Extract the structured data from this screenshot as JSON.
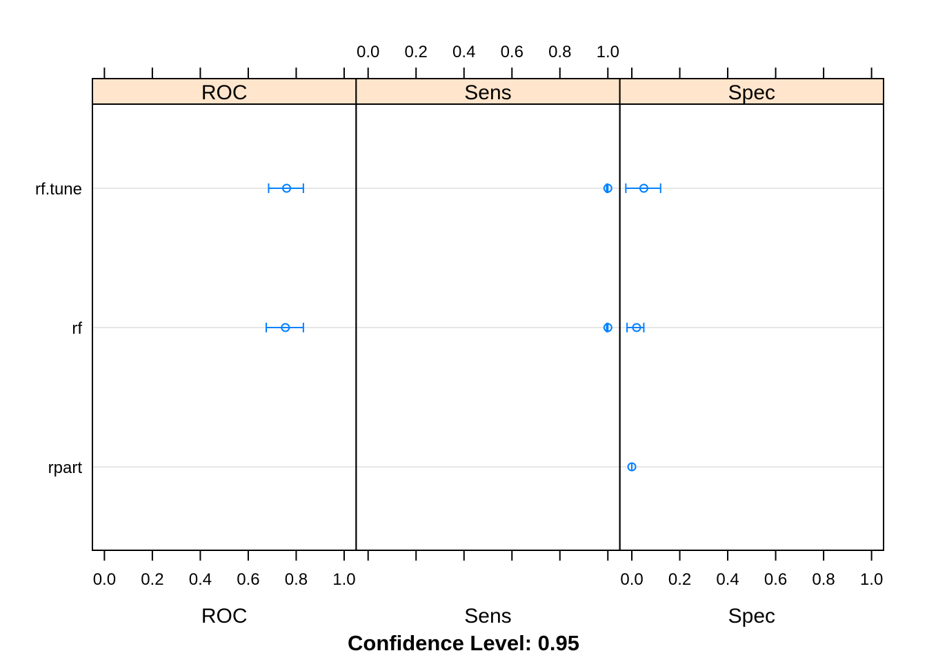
{
  "chart_data": {
    "type": "dotplot",
    "caption": "Confidence Level: 0.95",
    "models": [
      "rf.tune",
      "rf",
      "rpart"
    ],
    "xlim": [
      -0.05,
      1.05
    ],
    "ticks": [
      "0.0",
      "0.2",
      "0.4",
      "0.6",
      "0.8",
      "1.0"
    ],
    "colors": {
      "series": "#0080ff",
      "strip": "#ffe5cc",
      "gridline": "#e6e6e6",
      "frame": "#000000"
    },
    "panels": [
      {
        "name": "ROC",
        "xlabel": "ROC",
        "intervals": [
          {
            "model": "rf.tune",
            "estimate": 0.76,
            "lower": 0.685,
            "upper": 0.83
          },
          {
            "model": "rf",
            "estimate": 0.755,
            "lower": 0.675,
            "upper": 0.83
          }
        ]
      },
      {
        "name": "Sens",
        "xlabel": "Sens",
        "intervals": [
          {
            "model": "rf.tune",
            "estimate": 1.0,
            "lower": 0.995,
            "upper": 1.0
          },
          {
            "model": "rf",
            "estimate": 1.0,
            "lower": 0.995,
            "upper": 1.0
          }
        ]
      },
      {
        "name": "Spec",
        "xlabel": "Spec",
        "intervals": [
          {
            "model": "rf.tune",
            "estimate": 0.05,
            "lower": -0.025,
            "upper": 0.12
          },
          {
            "model": "rf",
            "estimate": 0.02,
            "lower": -0.02,
            "upper": 0.05
          },
          {
            "model": "rpart",
            "estimate": 0.0,
            "lower": 0.0,
            "upper": 0.0
          }
        ]
      }
    ]
  }
}
